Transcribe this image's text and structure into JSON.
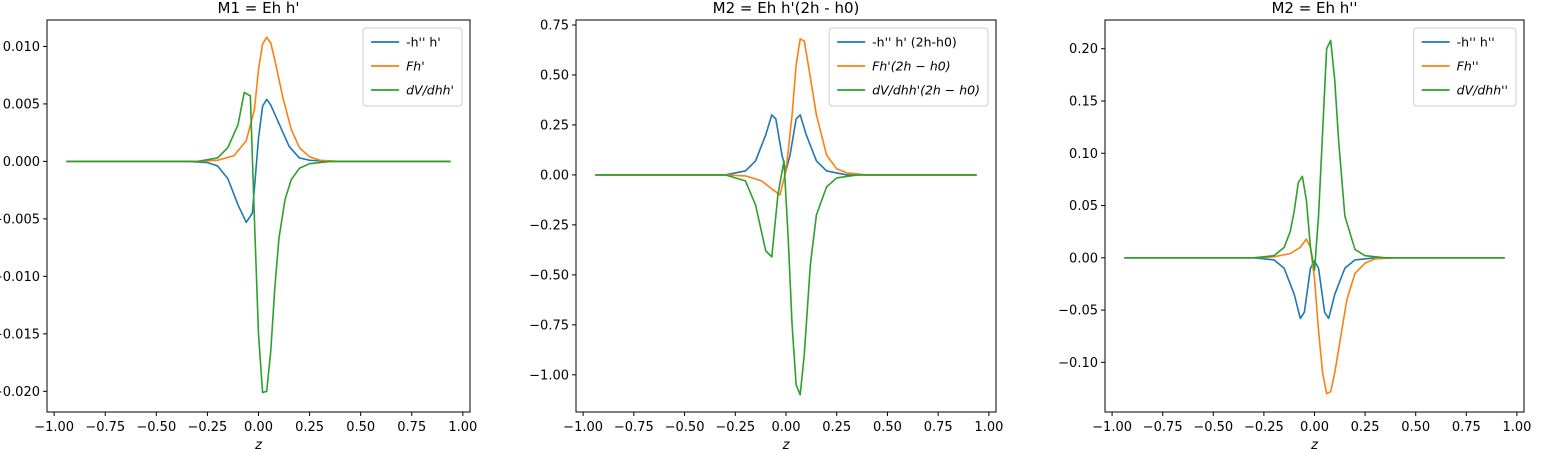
{
  "chart_data": [
    {
      "type": "line",
      "title": "M1 = Eh h'",
      "xlabel": "z",
      "ylabel": "",
      "xlim": [
        -1.035,
        1.035
      ],
      "ylim": [
        -0.0218,
        0.0123
      ],
      "xticks": [
        -1.0,
        -0.75,
        -0.5,
        -0.25,
        0.0,
        0.25,
        0.5,
        0.75,
        1.0
      ],
      "xtick_labels": [
        "−1.00",
        "−0.75",
        "−0.50",
        "−0.25",
        "0.00",
        "0.25",
        "0.50",
        "0.75",
        "1.00"
      ],
      "yticks": [
        0.01,
        0.005,
        0.0,
        -0.005,
        -0.01,
        -0.015,
        -0.02
      ],
      "ytick_labels": [
        "0.010",
        "0.005",
        "0.000",
        "−0.005",
        "−0.010",
        "−0.015",
        "−0.020"
      ],
      "legend": "top-right",
      "series": [
        {
          "name": "-h'' h'",
          "color": "#1f77b4",
          "x": [
            -0.94,
            -0.35,
            -0.25,
            -0.2,
            -0.15,
            -0.1,
            -0.06,
            -0.03,
            0.0,
            0.02,
            0.04,
            0.06,
            0.1,
            0.15,
            0.2,
            0.25,
            0.35,
            0.94
          ],
          "y": [
            0.0,
            0.0,
            -0.0001,
            -0.0004,
            -0.0015,
            -0.0038,
            -0.0053,
            -0.0045,
            0.002,
            0.0048,
            0.0054,
            0.0049,
            0.0033,
            0.0013,
            0.0003,
            0.0001,
            0.0,
            0.0
          ]
        },
        {
          "name": "Fh'",
          "color": "#ff7f0e",
          "x": [
            -0.94,
            -0.3,
            -0.2,
            -0.12,
            -0.06,
            -0.02,
            0.0,
            0.02,
            0.04,
            0.06,
            0.08,
            0.12,
            0.16,
            0.2,
            0.25,
            0.3,
            0.4,
            0.94
          ],
          "y": [
            0.0,
            0.0,
            0.0001,
            0.0005,
            0.0018,
            0.0045,
            0.008,
            0.0102,
            0.0108,
            0.0103,
            0.0088,
            0.0055,
            0.0028,
            0.0012,
            0.0004,
            0.0001,
            0.0,
            9.4e-10
          ]
        },
        {
          "name": "dV/dhh'",
          "color": "#2ca02c",
          "x": [
            -0.94,
            -0.3,
            -0.2,
            -0.15,
            -0.1,
            -0.07,
            -0.04,
            -0.02,
            0.0,
            0.02,
            0.04,
            0.06,
            0.08,
            0.1,
            0.13,
            0.16,
            0.2,
            0.25,
            0.35,
            0.94
          ],
          "y": [
            0.0,
            0.0,
            0.0003,
            0.0012,
            0.0032,
            0.006,
            0.0057,
            -0.005,
            -0.015,
            -0.0201,
            -0.02,
            -0.0165,
            -0.011,
            -0.0067,
            -0.0033,
            -0.0016,
            -0.0006,
            -0.0002,
            0.0,
            0.0
          ]
        }
      ]
    },
    {
      "type": "line",
      "title": "M2 = Eh h'(2h - h0)",
      "xlabel": "z",
      "ylabel": "",
      "xlim": [
        -1.035,
        1.035
      ],
      "ylim": [
        -1.186,
        0.775
      ],
      "xticks": [
        -1.0,
        -0.75,
        -0.5,
        -0.25,
        0.0,
        0.25,
        0.5,
        0.75,
        1.0
      ],
      "xtick_labels": [
        "−1.00",
        "−0.75",
        "−0.50",
        "−0.25",
        "0.00",
        "0.25",
        "0.50",
        "0.75",
        "1.00"
      ],
      "yticks": [
        0.75,
        0.5,
        0.25,
        0.0,
        -0.25,
        -0.5,
        -0.75,
        -1.0
      ],
      "ytick_labels": [
        "0.75",
        "0.50",
        "0.25",
        "0.00",
        "−0.25",
        "−0.50",
        "−0.75",
        "−1.00"
      ],
      "legend": "top-right",
      "series": [
        {
          "name": "-h'' h' (2h-h0)",
          "color": "#1f77b4",
          "x": [
            -0.94,
            -0.3,
            -0.2,
            -0.15,
            -0.1,
            -0.07,
            -0.05,
            -0.02,
            0.0,
            0.02,
            0.05,
            0.07,
            0.1,
            0.15,
            0.2,
            0.3,
            0.94
          ],
          "y": [
            0.0,
            0.0,
            0.02,
            0.07,
            0.2,
            0.3,
            0.28,
            0.1,
            0.02,
            0.1,
            0.28,
            0.3,
            0.2,
            0.07,
            0.02,
            0.0,
            0.0
          ]
        },
        {
          "name": "Fh'(2h − h0)",
          "color": "#ff7f0e",
          "x": [
            -0.94,
            -0.3,
            -0.2,
            -0.12,
            -0.07,
            -0.03,
            0.0,
            0.03,
            0.05,
            0.07,
            0.09,
            0.11,
            0.15,
            0.2,
            0.25,
            0.3,
            0.4,
            0.94
          ],
          "y": [
            0.0,
            0.0,
            -0.005,
            -0.03,
            -0.07,
            -0.1,
            0.02,
            0.3,
            0.55,
            0.68,
            0.67,
            0.55,
            0.3,
            0.1,
            0.03,
            0.01,
            0.0,
            0.0
          ]
        },
        {
          "name": "dV/dhh'(2h − h0)",
          "color": "#2ca02c",
          "x": [
            -0.94,
            -0.3,
            -0.2,
            -0.15,
            -0.1,
            -0.07,
            -0.04,
            -0.01,
            0.01,
            0.03,
            0.05,
            0.07,
            0.09,
            0.12,
            0.15,
            0.2,
            0.25,
            0.35,
            0.94
          ],
          "y": [
            0.0,
            0.0,
            -0.03,
            -0.15,
            -0.38,
            -0.41,
            -0.1,
            0.07,
            -0.3,
            -0.75,
            -1.05,
            -1.1,
            -0.9,
            -0.45,
            -0.2,
            -0.06,
            -0.015,
            0.0,
            0.0
          ]
        }
      ]
    },
    {
      "type": "line",
      "title": "M2 = Eh h''",
      "xlabel": "z",
      "ylabel": "",
      "xlim": [
        -1.035,
        1.035
      ],
      "ylim": [
        -0.1475,
        0.2275
      ],
      "xticks": [
        -1.0,
        -0.75,
        -0.5,
        -0.25,
        0.0,
        0.25,
        0.5,
        0.75,
        1.0
      ],
      "xtick_labels": [
        "−1.00",
        "−0.75",
        "−0.50",
        "−0.25",
        "0.00",
        "0.25",
        "0.50",
        "0.75",
        "1.00"
      ],
      "yticks": [
        0.2,
        0.15,
        0.1,
        0.05,
        0.0,
        -0.05,
        -0.1
      ],
      "ytick_labels": [
        "0.20",
        "0.15",
        "0.10",
        "0.05",
        "0.00",
        "−0.05",
        "−0.10"
      ],
      "legend": "top-right",
      "series": [
        {
          "name": "-h'' h''",
          "color": "#1f77b4",
          "x": [
            -0.94,
            -0.3,
            -0.2,
            -0.15,
            -0.1,
            -0.07,
            -0.05,
            -0.02,
            0.0,
            0.02,
            0.05,
            0.07,
            0.1,
            0.15,
            0.2,
            0.3,
            0.94
          ],
          "y": [
            0.0,
            0.0,
            -0.002,
            -0.01,
            -0.035,
            -0.058,
            -0.052,
            -0.01,
            -0.003,
            -0.01,
            -0.052,
            -0.058,
            -0.035,
            -0.01,
            -0.002,
            0.0,
            0.0
          ]
        },
        {
          "name": "Fh''",
          "color": "#ff7f0e",
          "x": [
            -0.94,
            -0.3,
            -0.2,
            -0.12,
            -0.07,
            -0.04,
            -0.02,
            0.0,
            0.02,
            0.04,
            0.06,
            0.08,
            0.1,
            0.13,
            0.16,
            0.2,
            0.25,
            0.3,
            0.4,
            0.94
          ],
          "y": [
            0.0,
            0.0,
            0.001,
            0.004,
            0.01,
            0.018,
            0.01,
            -0.02,
            -0.07,
            -0.11,
            -0.13,
            -0.128,
            -0.11,
            -0.075,
            -0.04,
            -0.015,
            -0.005,
            -0.001,
            0.0,
            0.0
          ]
        },
        {
          "name": "dV/dhh''",
          "color": "#2ca02c",
          "x": [
            -0.94,
            -0.3,
            -0.2,
            -0.15,
            -0.12,
            -0.1,
            -0.08,
            -0.06,
            -0.04,
            -0.02,
            0.0,
            0.02,
            0.04,
            0.06,
            0.08,
            0.1,
            0.12,
            0.15,
            0.2,
            0.25,
            0.35,
            0.94
          ],
          "y": [
            0.0,
            0.0,
            0.002,
            0.01,
            0.025,
            0.045,
            0.072,
            0.078,
            0.055,
            0.01,
            -0.012,
            0.04,
            0.12,
            0.2,
            0.208,
            0.17,
            0.11,
            0.04,
            0.008,
            0.002,
            0.0,
            0.0
          ]
        }
      ]
    }
  ]
}
